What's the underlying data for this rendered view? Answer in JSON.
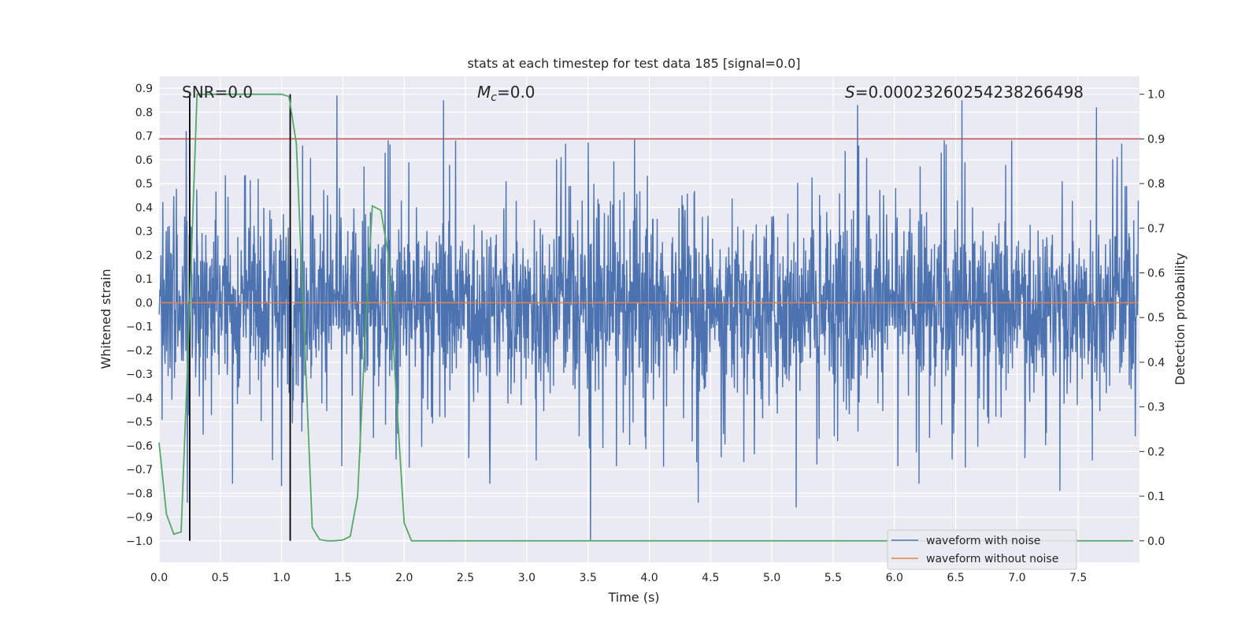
{
  "chart_data": {
    "type": "line",
    "title": "stats at each timestep for test data 185 [signal=0.0]",
    "xlabel": "Time (s)",
    "ylabel": "Whitened strain",
    "ylabel_right": "Detection probability",
    "xlim": [
      0.0,
      8.0
    ],
    "ylim": [
      -1.09,
      0.95
    ],
    "ylim_right": [
      -0.048,
      1.04
    ],
    "x_ticks": [
      0.0,
      0.5,
      1.0,
      1.5,
      2.0,
      2.5,
      3.0,
      3.5,
      4.0,
      4.5,
      5.0,
      5.5,
      6.0,
      6.5,
      7.0,
      7.5
    ],
    "x_tick_labels": [
      "0.0",
      "0.5",
      "1.0",
      "1.5",
      "2.0",
      "2.5",
      "3.0",
      "3.5",
      "4.0",
      "4.5",
      "5.0",
      "5.5",
      "6.0",
      "6.5",
      "7.0",
      "7.5"
    ],
    "y_ticks": [
      0.9,
      0.8,
      0.7,
      0.6,
      0.5,
      0.4,
      0.3,
      0.2,
      0.1,
      0.0,
      -0.1,
      -0.2,
      -0.3,
      -0.4,
      -0.5,
      -0.6,
      -0.7,
      -0.8,
      -0.9,
      -1.0
    ],
    "y_tick_labels": [
      "0.9",
      "0.8",
      "0.7",
      "0.6",
      "0.5",
      "0.4",
      "0.3",
      "0.2",
      "0.1",
      "0.0",
      "−0.1",
      "−0.2",
      "−0.3",
      "−0.4",
      "−0.5",
      "−0.6",
      "−0.7",
      "−0.8",
      "−0.9",
      "−1.0"
    ],
    "y_right_ticks": [
      1.0,
      0.9,
      0.8,
      0.7,
      0.6,
      0.5,
      0.4,
      0.3,
      0.2,
      0.1,
      0.0
    ],
    "y_right_tick_labels": [
      "1.0",
      "0.9",
      "0.8",
      "0.7",
      "0.6",
      "0.5",
      "0.4",
      "0.3",
      "0.2",
      "0.1",
      "0.0"
    ],
    "annotations": {
      "snr_label": "SNR=0.0",
      "mc_symbol": "M",
      "mc_subscript": "c",
      "mc_value": "=0.0",
      "s_symbol": "S",
      "s_value": "=0.00023260254238266498"
    },
    "legend": {
      "position": "lower-right",
      "entries": [
        "waveform with noise",
        "waveform without noise"
      ]
    },
    "colors": {
      "noise": "#4c72b0",
      "clean": "#dd8452",
      "probability": "#55a868",
      "threshold": "#c44e52",
      "marker": "#000000",
      "panel": "#eaeaf2",
      "grid": "#ffffff"
    },
    "threshold_probability": 0.9,
    "vertical_markers_time": [
      0.25,
      1.07
    ],
    "noise_series": {
      "name": "waveform with noise",
      "description_stats": {
        "core_amplitude": 0.3,
        "peak_max": 0.87,
        "peak_min": -1.0
      },
      "outliers": [
        {
          "t": 0.22,
          "v": 0.72
        },
        {
          "t": 0.23,
          "v": -0.84
        },
        {
          "t": 1.45,
          "v": 0.87
        },
        {
          "t": 2.32,
          "v": 0.85
        },
        {
          "t": 3.52,
          "v": -1.0
        },
        {
          "t": 5.2,
          "v": -0.86
        },
        {
          "t": 5.7,
          "v": 0.83
        },
        {
          "t": 6.55,
          "v": 0.85
        },
        {
          "t": 7.65,
          "v": 0.82
        },
        {
          "t": 0.6,
          "v": -0.76
        },
        {
          "t": 1.0,
          "v": -0.77
        },
        {
          "t": 2.7,
          "v": -0.76
        },
        {
          "t": 4.4,
          "v": -0.84
        },
        {
          "t": 6.2,
          "v": -0.76
        },
        {
          "t": 7.35,
          "v": -0.79
        }
      ]
    },
    "clean_series": {
      "name": "waveform without noise",
      "x": [
        0.0,
        7.99
      ],
      "values": [
        0.0,
        0.0
      ]
    },
    "probability_series": {
      "name": "Detection probability",
      "x": [
        0.0,
        0.06,
        0.12,
        0.18,
        0.24,
        0.31,
        0.37,
        0.43,
        0.5,
        0.56,
        0.62,
        0.68,
        0.74,
        0.81,
        0.87,
        0.93,
        1.0,
        1.06,
        1.12,
        1.18,
        1.25,
        1.31,
        1.37,
        1.43,
        1.5,
        1.56,
        1.62,
        1.68,
        1.74,
        1.81,
        1.87,
        1.93,
        2.0,
        2.06,
        2.12,
        2.3,
        3.0,
        4.0,
        5.0,
        6.0,
        7.0,
        7.95
      ],
      "values": [
        0.22,
        0.06,
        0.015,
        0.02,
        0.45,
        1.0,
        1.0,
        1.0,
        1.0,
        1.0,
        1.0,
        1.0,
        1.0,
        1.0,
        1.0,
        1.0,
        1.0,
        0.995,
        0.89,
        0.5,
        0.03,
        0.003,
        0.0,
        0.0,
        0.002,
        0.01,
        0.1,
        0.45,
        0.75,
        0.74,
        0.64,
        0.35,
        0.04,
        0.0,
        0.0,
        0.0,
        0.0,
        0.0,
        0.0,
        0.0,
        0.0,
        0.0
      ]
    }
  }
}
